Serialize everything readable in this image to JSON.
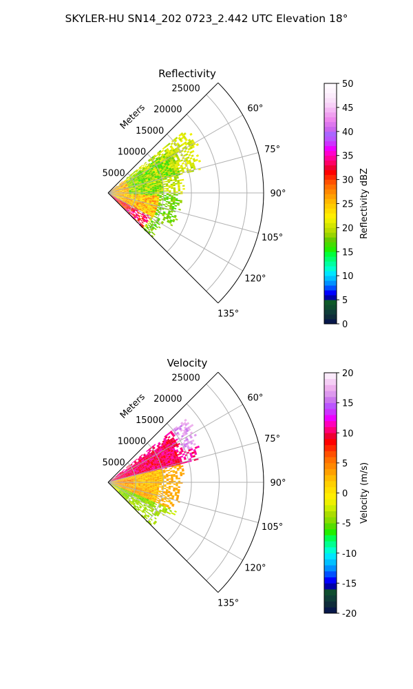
{
  "figure": {
    "title": "SKYLER-HU  SN14_202  0723_2.442 UTC Elevation 18°"
  },
  "chart_data": [
    {
      "type": "heatmap",
      "subtype": "polar-sector-radar-ppi",
      "title": "Reflectivity",
      "radial_axis_label": "Meters",
      "radial_range": [
        0,
        28000
      ],
      "radial_ticks": [
        5000,
        10000,
        15000,
        20000,
        25000
      ],
      "angle_range_deg": [
        45,
        135
      ],
      "angle_ticks_deg": [
        60,
        75,
        90,
        105,
        120,
        135
      ],
      "angle_tick_labels": [
        "60°",
        "75°",
        "90°",
        "105°",
        "120°",
        "135°"
      ],
      "grid": true,
      "colorbar": {
        "label": "Reflectivity dBZ",
        "range": [
          0,
          50
        ],
        "ticks": [
          0,
          5,
          10,
          15,
          20,
          25,
          30,
          35,
          40,
          45,
          50
        ],
        "colors": [
          "#08184a",
          "#0f2c3a",
          "#0f3d38",
          "#0f4d2f",
          "#0f5a28",
          "#0000a8",
          "#0000ff",
          "#0050ff",
          "#0090ff",
          "#00c0ff",
          "#00e6ff",
          "#00ffd0",
          "#00ffa0",
          "#00ff70",
          "#00ff3c",
          "#22ee00",
          "#44dd00",
          "#66cc00",
          "#99d400",
          "#bbdd00",
          "#d4e600",
          "#eef000",
          "#ffee00",
          "#ffdd00",
          "#ffcc00",
          "#ffb800",
          "#ffa000",
          "#ff8800",
          "#ff7000",
          "#ff5000",
          "#ff2800",
          "#ff0000",
          "#ee0033",
          "#ff0066",
          "#ff0099",
          "#ff00cc",
          "#ee00ff",
          "#cc33ff",
          "#bb55ff",
          "#aa66ff",
          "#cc66ee",
          "#dd77ee",
          "#ee88ee",
          "#f0a0f0",
          "#f5b8f5",
          "#f8d0f8",
          "#fae0fa",
          "#fcecfc",
          "#fef5fe",
          "#fffaff"
        ]
      },
      "data_summary": {
        "dominant_values": "15-25 dBZ green echoes at 5000-18000 m between ~55° and ~115°",
        "maximum_region": "30-37 dBZ near 135° at 3000-9000 m"
      }
    },
    {
      "type": "heatmap",
      "subtype": "polar-sector-radar-ppi",
      "title": "Velocity",
      "radial_axis_label": "Meters",
      "radial_range": [
        0,
        28000
      ],
      "radial_ticks": [
        5000,
        10000,
        15000,
        20000,
        25000
      ],
      "angle_range_deg": [
        45,
        135
      ],
      "angle_ticks_deg": [
        60,
        75,
        90,
        105,
        120,
        135
      ],
      "angle_tick_labels": [
        "60°",
        "75°",
        "90°",
        "105°",
        "120°",
        "135°"
      ],
      "grid": true,
      "colorbar": {
        "label": "Velocity (m/s)",
        "range": [
          -20,
          20
        ],
        "ticks": [
          -20,
          -15,
          -10,
          -5,
          0,
          5,
          10,
          15,
          20
        ],
        "colors": [
          "#08184a",
          "#0f2c3a",
          "#0f3d38",
          "#0f4d2f",
          "#0000a8",
          "#0000ff",
          "#0050ff",
          "#0090ff",
          "#00c0ff",
          "#00e6ff",
          "#00ffd0",
          "#00ff90",
          "#00ff50",
          "#22ee00",
          "#55dd00",
          "#88dd00",
          "#aadd00",
          "#ccee00",
          "#eef000",
          "#ffee00",
          "#ffe000",
          "#ffd000",
          "#ffbb00",
          "#ffa000",
          "#ff8800",
          "#ff7000",
          "#ff5000",
          "#ff2800",
          "#ff0000",
          "#ee0033",
          "#ff0077",
          "#ff00bb",
          "#ee00ff",
          "#cc33ff",
          "#bb55ff",
          "#cc77ee",
          "#dd99ee",
          "#eeb0ee",
          "#f5cff5",
          "#fbeafb"
        ]
      },
      "data_summary": {
        "dominant_values": "0 to 5 m/s yellow-orange over most echoes; 10-12 m/s red near 60°-85°",
        "maximum_region": "15-18 m/s magenta near 60°-70° at 17000-22000 m",
        "minimum_region": "-5 to -7 m/s green near 120°-135° at 3000-12000 m"
      }
    }
  ]
}
